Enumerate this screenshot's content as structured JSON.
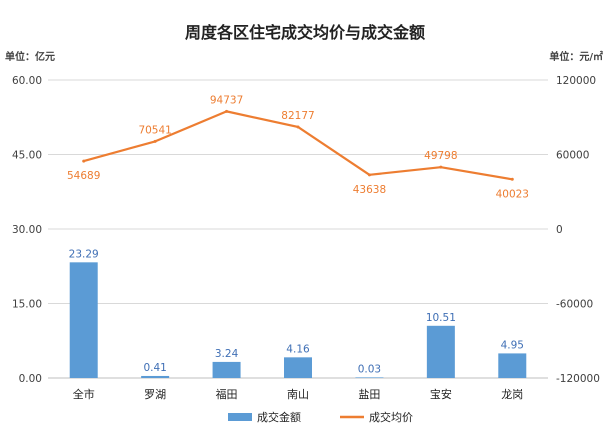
{
  "chart_data": {
    "type": "bar",
    "title": "周度各区住宅成交均价与成交金额",
    "left_unit": "单位：亿元",
    "right_unit": "单位：元/㎡",
    "categories": [
      "全市",
      "罗湖",
      "福田",
      "南山",
      "盐田",
      "宝安",
      "龙岗"
    ],
    "y_left": {
      "min": 0,
      "max": 60,
      "ticks": [
        "0.00",
        "15.00",
        "30.00",
        "45.00",
        "60.00"
      ]
    },
    "y_right": {
      "min": -120000,
      "max": 120000,
      "ticks": [
        "-120000",
        "-60000",
        "0",
        "60000",
        "120000"
      ]
    },
    "grid": true,
    "legend_position": "bottom",
    "series": [
      {
        "name": "成交金额",
        "kind": "bar",
        "axis": "left",
        "color": "#5B9BD5",
        "values": [
          23.29,
          0.41,
          3.24,
          4.16,
          0.03,
          10.51,
          4.95
        ],
        "labels": [
          "23.29",
          "0.41",
          "3.24",
          "4.16",
          "0.03",
          "10.51",
          "4.95"
        ]
      },
      {
        "name": "成交均价",
        "kind": "line",
        "axis": "right",
        "color": "#ED7D31",
        "values": [
          54689,
          70541,
          94737,
          82177,
          43638,
          49798,
          40023
        ],
        "labels": [
          "54689",
          "70541",
          "94737",
          "82177",
          "43638",
          "49798",
          "40023"
        ]
      }
    ]
  }
}
